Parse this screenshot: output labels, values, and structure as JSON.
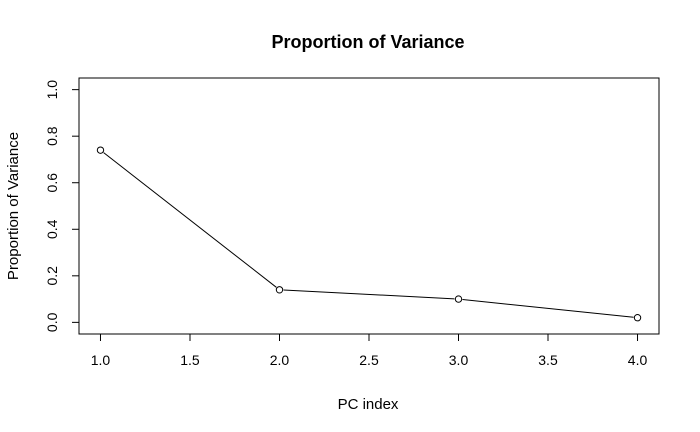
{
  "chart_data": {
    "type": "line",
    "title": "Proportion of Variance",
    "xlabel": "PC index",
    "ylabel": "Proportion of Variance",
    "xlim": [
      0.88,
      4.12
    ],
    "ylim": [
      -0.05,
      1.05
    ],
    "x_ticks": [
      1.0,
      1.5,
      2.0,
      2.5,
      3.0,
      3.5,
      4.0
    ],
    "x_tick_labels": [
      "1.0",
      "1.5",
      "2.0",
      "2.5",
      "3.0",
      "3.5",
      "4.0"
    ],
    "y_ticks": [
      0.0,
      0.2,
      0.4,
      0.6,
      0.8,
      1.0
    ],
    "y_tick_labels": [
      "0.0",
      "0.2",
      "0.4",
      "0.6",
      "0.8",
      "1.0"
    ],
    "grid": false,
    "legend": "none",
    "marker": "open-circle",
    "line_color": "#000000",
    "x": [
      1,
      2,
      3,
      4
    ],
    "values": [
      0.74,
      0.14,
      0.1,
      0.02
    ]
  }
}
